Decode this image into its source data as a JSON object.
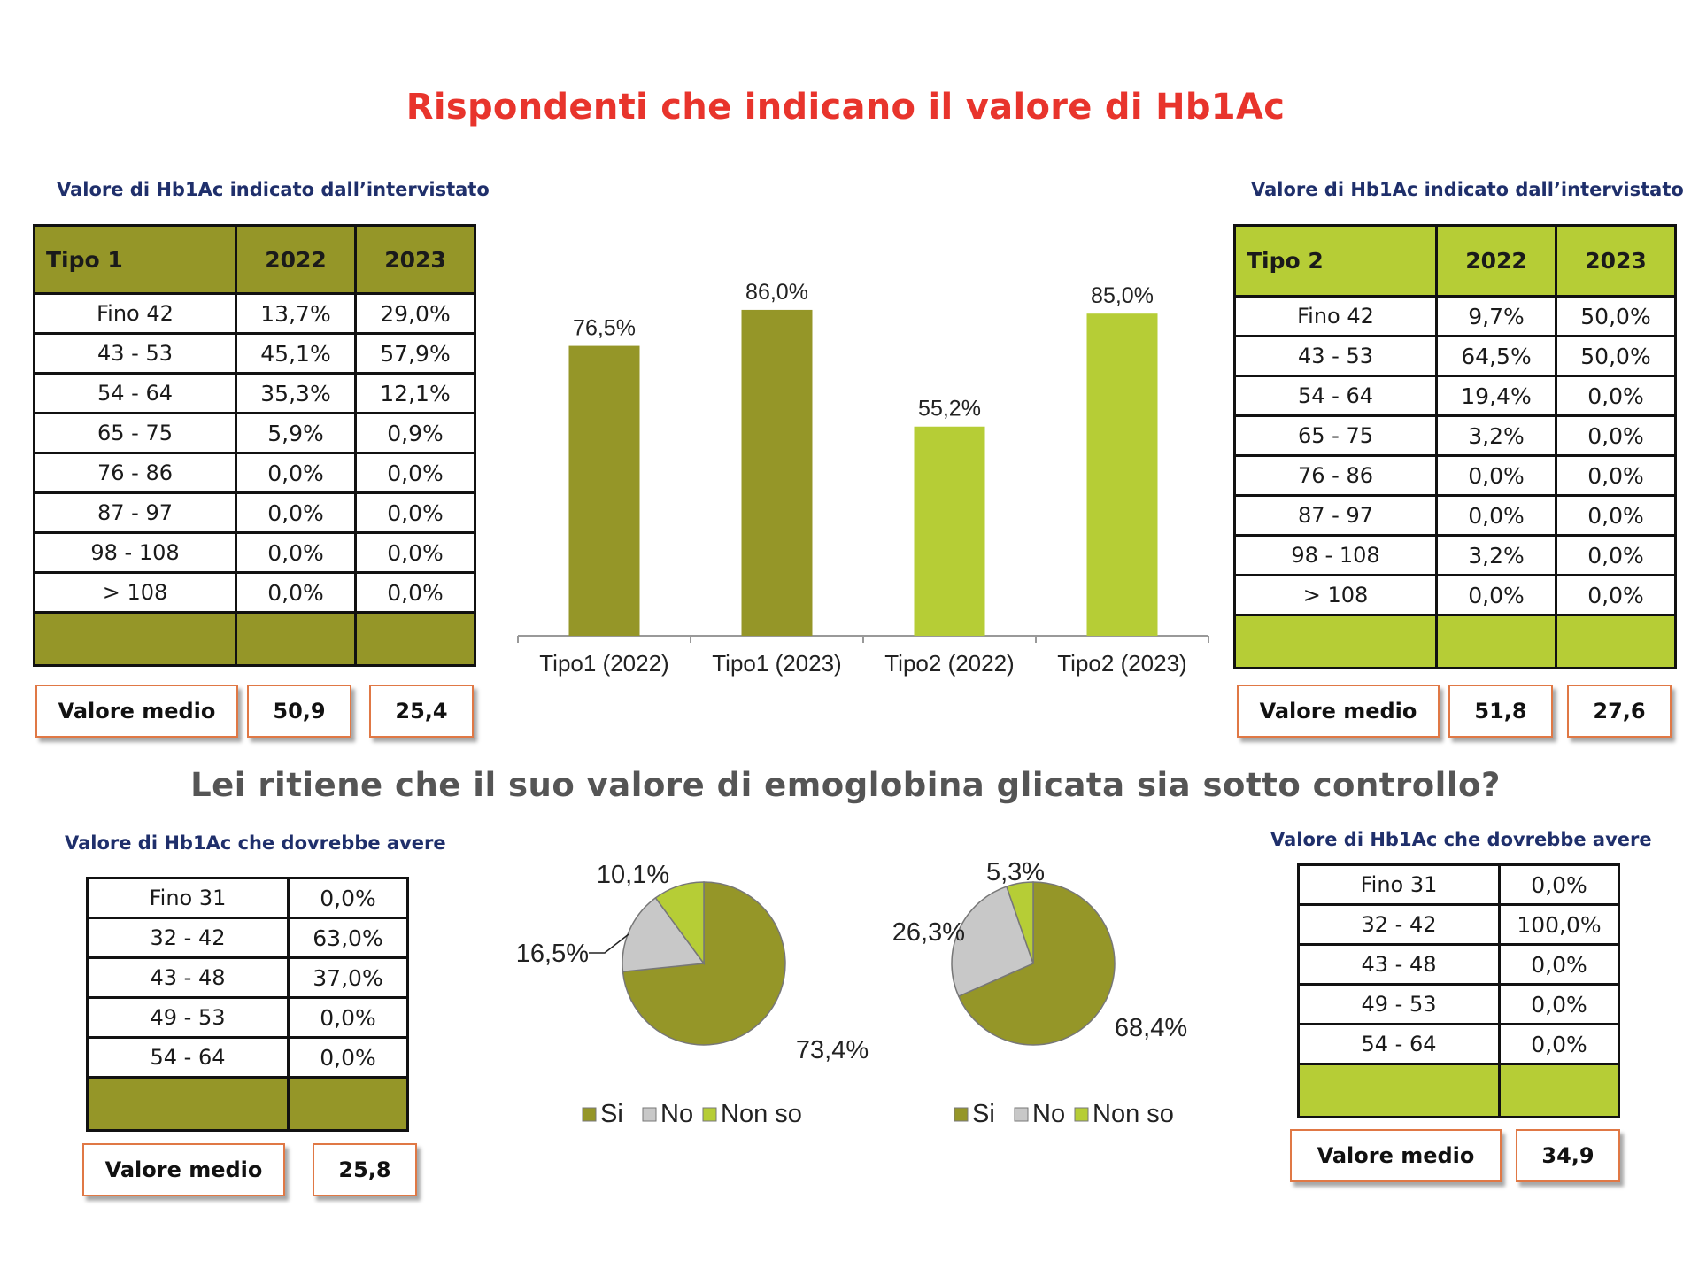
{
  "title": "Rispondenti che indicano il valore di Hb1Ac",
  "question": "Lei ritiene che il suo valore di emoglobina glicata sia sotto controllo?",
  "colors": {
    "olive": "#959628",
    "lime": "#b6cd36",
    "grey": "#c8c8c8",
    "title_red": "#e8342c",
    "navy": "#1f2f6b",
    "box_border": "#e07845"
  },
  "tipo1_table": {
    "caption": "Valore di Hb1Ac indicato dall’intervistato",
    "headers": [
      "Tipo 1",
      "2022",
      "2023"
    ],
    "rows": [
      [
        "Fino 42",
        "13,7%",
        "29,0%"
      ],
      [
        "43 - 53",
        "45,1%",
        "57,9%"
      ],
      [
        "54 - 64",
        "35,3%",
        "12,1%"
      ],
      [
        "65 - 75",
        "5,9%",
        "0,9%"
      ],
      [
        "76 - 86",
        "0,0%",
        "0,0%"
      ],
      [
        "87 - 97",
        "0,0%",
        "0,0%"
      ],
      [
        "98  - 108",
        "0,0%",
        "0,0%"
      ],
      [
        "> 108",
        "0,0%",
        "0,0%"
      ]
    ],
    "mean_label": "Valore medio",
    "mean_values": [
      "50,9",
      "25,4"
    ]
  },
  "tipo2_table": {
    "caption": "Valore di Hb1Ac indicato dall’intervistato",
    "headers": [
      "Tipo 2",
      "2022",
      "2023"
    ],
    "rows": [
      [
        "Fino 42",
        "9,7%",
        "50,0%"
      ],
      [
        "43 - 53",
        "64,5%",
        "50,0%"
      ],
      [
        "54 - 64",
        "19,4%",
        "0,0%"
      ],
      [
        "65 - 75",
        "3,2%",
        "0,0%"
      ],
      [
        "76 - 86",
        "0,0%",
        "0,0%"
      ],
      [
        "87 - 97",
        "0,0%",
        "0,0%"
      ],
      [
        "98  - 108",
        "3,2%",
        "0,0%"
      ],
      [
        "> 108",
        "0,0%",
        "0,0%"
      ]
    ],
    "mean_label": "Valore medio",
    "mean_values": [
      "51,8",
      "27,6"
    ]
  },
  "tipo1_target_table": {
    "caption": "Valore di Hb1Ac che dovrebbe avere",
    "rows": [
      [
        "Fino 31",
        "0,0%"
      ],
      [
        "32 - 42",
        "63,0%"
      ],
      [
        "43 - 48",
        "37,0%"
      ],
      [
        "49 - 53",
        "0,0%"
      ],
      [
        "54 - 64",
        "0,0%"
      ]
    ],
    "mean_label": "Valore medio",
    "mean_value": "25,8"
  },
  "tipo2_target_table": {
    "caption": "Valore di Hb1Ac che dovrebbe avere",
    "rows": [
      [
        "Fino 31",
        "0,0%"
      ],
      [
        "32 - 42",
        "100,0%"
      ],
      [
        "43 - 48",
        "0,0%"
      ],
      [
        "49 - 53",
        "0,0%"
      ],
      [
        "54 - 64",
        "0,0%"
      ]
    ],
    "mean_label": "Valore medio",
    "mean_value": "34,9"
  },
  "chart_data": [
    {
      "type": "bar",
      "title": "",
      "categories": [
        "Tipo1 (2022)",
        "Tipo1 (2023)",
        "Tipo2 (2022)",
        "Tipo2 (2023)"
      ],
      "values": [
        76.5,
        86.0,
        55.2,
        85.0
      ],
      "labels": [
        "76,5%",
        "86,0%",
        "55,2%",
        "85,0%"
      ],
      "bar_colors": [
        "#959628",
        "#959628",
        "#b6cd36",
        "#b6cd36"
      ],
      "xlabel": "",
      "ylabel": "",
      "ylim": [
        0,
        100
      ],
      "grid": false
    },
    {
      "type": "pie",
      "slices": [
        {
          "name": "Si",
          "value": 73.4,
          "label": "73,4%",
          "color": "#959628"
        },
        {
          "name": "No",
          "value": 16.5,
          "label": "16,5%",
          "color": "#c8c8c8"
        },
        {
          "name": "Non so",
          "value": 10.1,
          "label": "10,1%",
          "color": "#b6cd36"
        }
      ],
      "legend": [
        "Si",
        "No",
        "Non so"
      ],
      "legend_position": "bottom"
    },
    {
      "type": "pie",
      "slices": [
        {
          "name": "Si",
          "value": 68.4,
          "label": "68,4%",
          "color": "#959628"
        },
        {
          "name": "No",
          "value": 26.3,
          "label": "26,3%",
          "color": "#c8c8c8"
        },
        {
          "name": "Non so",
          "value": 5.3,
          "label": "5,3%",
          "color": "#b6cd36"
        }
      ],
      "legend": [
        "Si",
        "No",
        "Non so"
      ],
      "legend_position": "bottom"
    }
  ]
}
